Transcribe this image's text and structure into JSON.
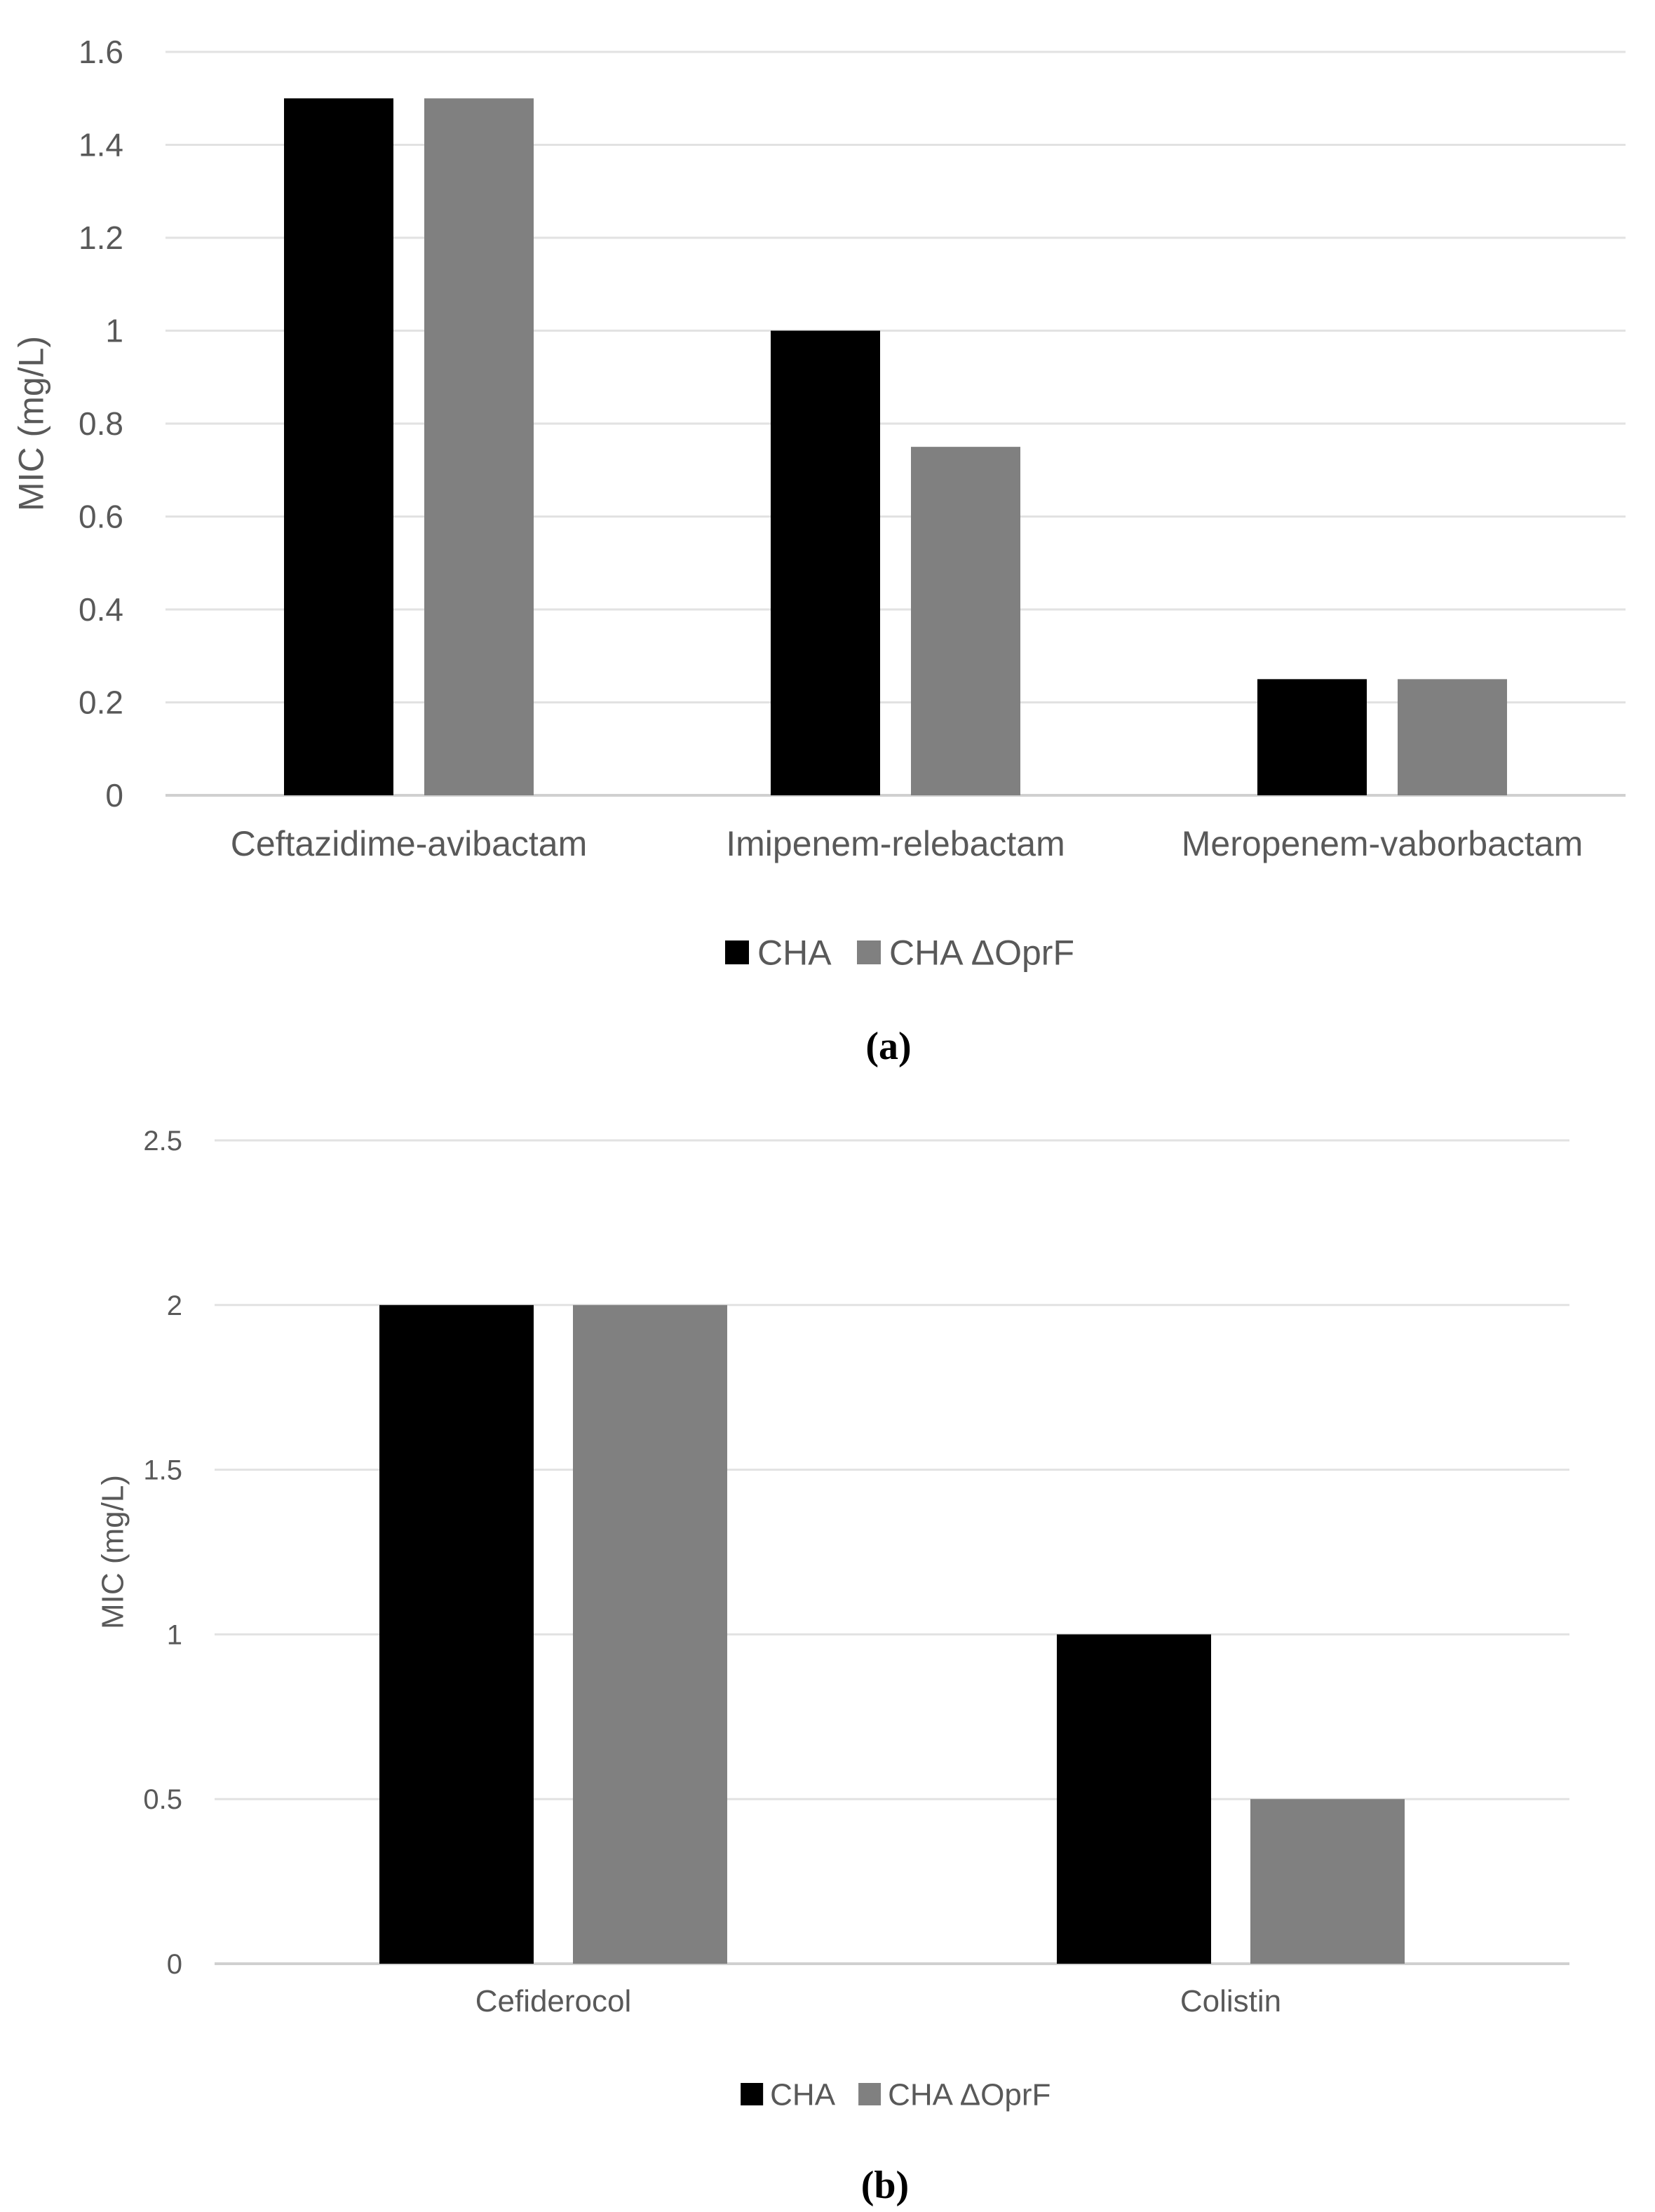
{
  "chart_data": [
    {
      "type": "bar",
      "panel_label": "(a)",
      "title": "",
      "xlabel": "",
      "ylabel": "MIC (mg/L)",
      "ylim": [
        0,
        1.6
      ],
      "yticks": [
        "0",
        "0.2",
        "0.4",
        "0.6",
        "0.8",
        "1",
        "1.2",
        "1.4",
        "1.6"
      ],
      "categories": [
        "Ceftazidime-avibactam",
        "Imipenem-relebactam",
        "Meropenem-vaborbactam"
      ],
      "series": [
        {
          "name": "CHA",
          "color": "#000000",
          "values": [
            1.5,
            1.0,
            0.25
          ]
        },
        {
          "name": "CHA ΔOprF",
          "color": "#808080",
          "values": [
            1.5,
            0.75,
            0.25
          ]
        }
      ],
      "grid": true,
      "legend": "bottom-center"
    },
    {
      "type": "bar",
      "panel_label": "(b)",
      "title": "",
      "xlabel": "",
      "ylabel": "MIC (mg/L)",
      "ylim": [
        0,
        2.5
      ],
      "yticks": [
        "0",
        "0.5",
        "1",
        "1.5",
        "2",
        "2.5"
      ],
      "categories": [
        "Cefiderocol",
        "Colistin"
      ],
      "series": [
        {
          "name": "CHA",
          "color": "#000000",
          "values": [
            2.0,
            1.0
          ]
        },
        {
          "name": "CHA ΔOprF",
          "color": "#808080",
          "values": [
            2.0,
            0.5
          ]
        }
      ],
      "grid": true,
      "legend": "bottom-center"
    }
  ]
}
